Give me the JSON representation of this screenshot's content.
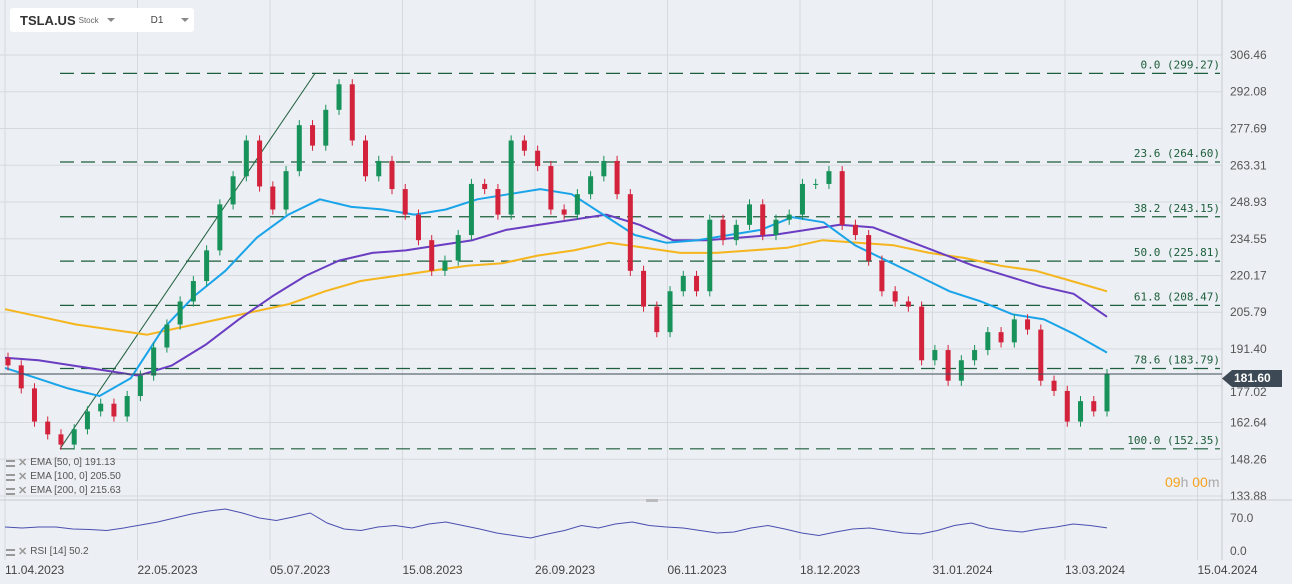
{
  "header": {
    "symbol": "TSLA.US",
    "type": "Stock",
    "timeframe": "D1"
  },
  "legend": {
    "ema50": "EMA  [50,  0]  191.13",
    "ema100": "EMA  [100,  0]  205.50",
    "ema200": "EMA  [200,  0]  215.63",
    "rsi": "RSI  [14]  50.2"
  },
  "timer": {
    "hours": "09",
    "h": "h",
    "minutes": "00",
    "m": "m"
  },
  "current_price": "181.60",
  "colors": {
    "up": "#17925a",
    "down": "#d3223c",
    "ema50": "#19a4ea",
    "ema100": "#6a3dc2",
    "ema200": "#f5b51d",
    "fib": "#1d5e3c",
    "rsi": "#4a4fb0"
  },
  "chart_data": {
    "type": "candlestick",
    "ylim": [
      133.88,
      306.46
    ],
    "yticks": [
      "306.46",
      "292.08",
      "277.69",
      "263.31",
      "248.93",
      "234.55",
      "220.17",
      "205.79",
      "191.40",
      "177.02",
      "162.64",
      "148.26",
      "133.88"
    ],
    "xticks": [
      "11.04.2023",
      "22.05.2023",
      "05.07.2023",
      "15.08.2023",
      "26.09.2023",
      "06.11.2023",
      "18.12.2023",
      "31.01.2024",
      "13.03.2024",
      "15.04.2024"
    ],
    "closes": [
      185,
      176,
      163,
      158,
      154,
      160,
      167,
      170,
      165,
      173,
      181,
      192,
      201,
      210,
      218,
      230,
      248,
      259,
      273,
      255,
      246,
      261,
      279,
      271,
      285,
      295,
      273,
      259,
      265,
      254,
      244,
      234,
      222,
      226,
      236,
      256,
      254,
      244,
      273,
      269,
      263,
      246,
      244,
      252,
      259,
      265,
      252,
      222,
      208,
      198,
      214,
      220,
      214,
      242,
      234,
      240,
      248,
      236,
      242,
      244,
      256,
      256,
      261,
      240,
      236,
      226,
      214,
      210,
      208,
      187,
      191,
      179,
      187,
      191,
      198,
      194,
      203,
      199,
      179,
      175,
      163,
      171,
      167,
      181.6
    ],
    "ema50": [
      184,
      180,
      176,
      173,
      180,
      199,
      212,
      222,
      235,
      244,
      250,
      247,
      246,
      244,
      246,
      250,
      252,
      254,
      252,
      244,
      236,
      233,
      234,
      236,
      238,
      243,
      241,
      232,
      226,
      220,
      214,
      210,
      205,
      203,
      197,
      190
    ],
    "ema100": [
      188,
      187,
      185,
      183,
      181,
      185,
      193,
      203,
      212,
      220,
      226,
      229,
      230,
      232,
      234,
      238,
      240,
      242,
      244,
      240,
      234,
      234,
      235,
      236,
      238,
      240,
      239,
      234,
      229,
      224,
      220,
      216,
      213,
      204
    ],
    "ema200": [
      207,
      204,
      201,
      199,
      197,
      200,
      203,
      206,
      209,
      214,
      218,
      220,
      222,
      224,
      225,
      228,
      230,
      233,
      231,
      229,
      229,
      230,
      231,
      234,
      233,
      232,
      229,
      227,
      224,
      222,
      218,
      214
    ],
    "fib_levels": [
      {
        "label": "0.0 (299.27)",
        "value": 299.27
      },
      {
        "label": "23.6 (264.60)",
        "value": 264.6
      },
      {
        "label": "38.2 (243.15)",
        "value": 243.15
      },
      {
        "label": "50.0 (225.81)",
        "value": 225.81
      },
      {
        "label": "61.8 (208.47)",
        "value": 208.47
      },
      {
        "label": "78.6 (183.79)",
        "value": 183.79
      },
      {
        "label": "100.0 (152.35)",
        "value": 152.35
      }
    ],
    "rsi": {
      "yticks": [
        "70.0",
        "0.0"
      ],
      "values": [
        52,
        50,
        52,
        52,
        48,
        47,
        45,
        50,
        56,
        62,
        70,
        78,
        84,
        88,
        80,
        70,
        65,
        72,
        80,
        60,
        48,
        45,
        52,
        55,
        50,
        58,
        62,
        55,
        48,
        40,
        35,
        30,
        38,
        45,
        55,
        50,
        58,
        62,
        55,
        52,
        50,
        45,
        40,
        42,
        50,
        55,
        48,
        40,
        35,
        42,
        48,
        50,
        45,
        40,
        38,
        45,
        55,
        60,
        50,
        45,
        42,
        48,
        52,
        58,
        55,
        50.2
      ]
    }
  }
}
